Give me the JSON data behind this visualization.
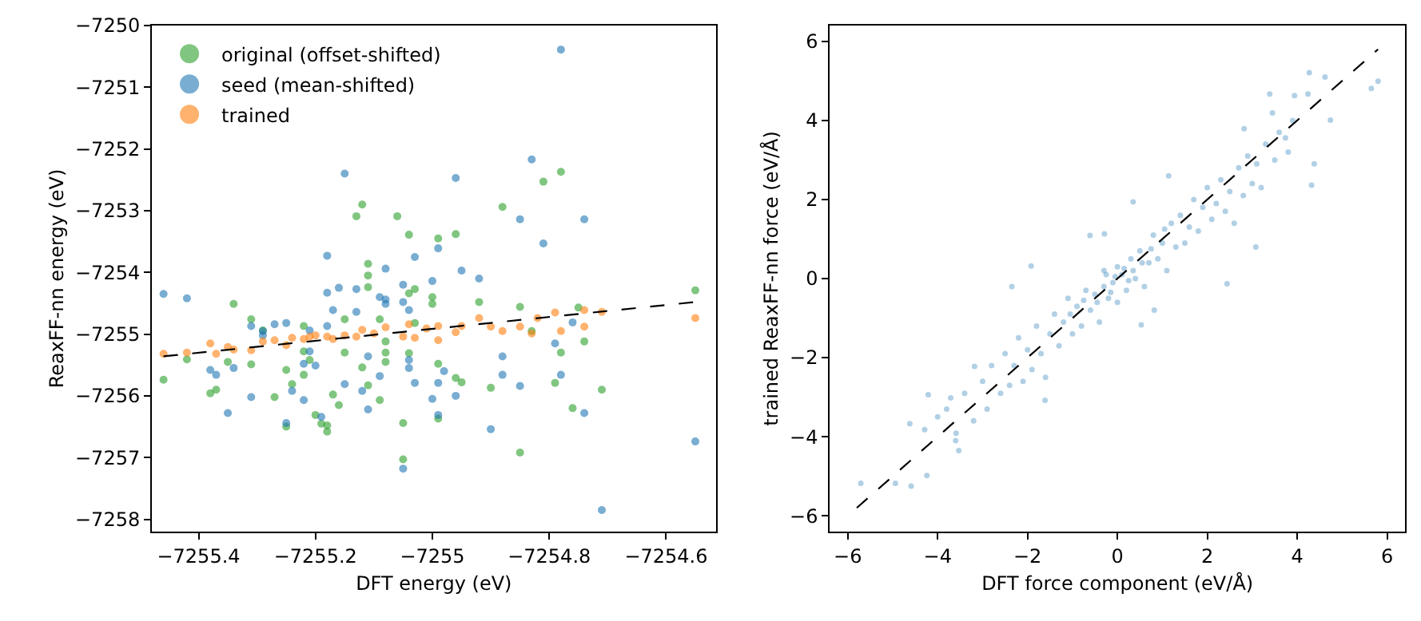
{
  "chart_data": [
    {
      "type": "scatter",
      "xlabel": "DFT energy (eV)",
      "ylabel": "ReaxFF-nn energy (eV)",
      "legend": "top left",
      "marker": "circle",
      "xlim": [
        -7255.48,
        -7254.515
      ],
      "ylim": [
        -7258.2,
        -7250
      ],
      "xticks": [
        -7255.4,
        -7255.2,
        -7255.0,
        -7254.8,
        -7254.6
      ],
      "yticks": [
        -7258,
        -7257,
        -7256,
        -7255,
        -7254,
        -7253,
        -7252,
        -7251,
        -7250
      ],
      "series": [
        {
          "name": "original (offset-shifted)",
          "color": "#2ca02c",
          "x": [
            -7255.46,
            -7255.42,
            -7255.38,
            -7255.37,
            -7255.35,
            -7255.34,
            -7255.31,
            -7255.31,
            -7255.29,
            -7255.27,
            -7255.25,
            -7255.25,
            -7255.24,
            -7255.22,
            -7255.22,
            -7255.22,
            -7255.21,
            -7255.2,
            -7255.19,
            -7255.18,
            -7255.18,
            -7255.17,
            -7255.16,
            -7255.15,
            -7255.15,
            -7255.13,
            -7255.12,
            -7255.12,
            -7255.11,
            -7255.11,
            -7255.11,
            -7255.11,
            -7255.09,
            -7255.09,
            -7255.08,
            -7255.08,
            -7255.08,
            -7255.06,
            -7255.05,
            -7255.05,
            -7255.04,
            -7255.04,
            -7255.04,
            -7255.03,
            -7255.03,
            -7255.0,
            -7255.0,
            -7254.99,
            -7254.99,
            -7254.99,
            -7254.96,
            -7254.96,
            -7254.95,
            -7254.92,
            -7254.9,
            -7254.88,
            -7254.85,
            -7254.85,
            -7254.83,
            -7254.81,
            -7254.79,
            -7254.78,
            -7254.78,
            -7254.76,
            -7254.75,
            -7254.74,
            -7254.71,
            -7254.55
          ],
          "values": [
            -7255.74,
            -7255.41,
            -7255.96,
            -7255.9,
            -7255.45,
            -7254.51,
            -7255.49,
            -7254.76,
            -7254.94,
            -7256.02,
            -7255.58,
            -7256.5,
            -7255.81,
            -7255.28,
            -7254.87,
            -7255.66,
            -7255.42,
            -7256.31,
            -7256.45,
            -7256.58,
            -7256.48,
            -7255.98,
            -7256.15,
            -7254.76,
            -7255.3,
            -7253.09,
            -7252.9,
            -7255.54,
            -7255.83,
            -7254.24,
            -7253.86,
            -7254.05,
            -7254.76,
            -7256.07,
            -7255.12,
            -7255.3,
            -7255.45,
            -7253.09,
            -7256.44,
            -7257.03,
            -7253.39,
            -7254.34,
            -7255.31,
            -7254.82,
            -7254.27,
            -7254.51,
            -7254.4,
            -7256.37,
            -7253.45,
            -7255.48,
            -7255.71,
            -7253.38,
            -7255.78,
            -7254.48,
            -7255.87,
            -7252.94,
            -7254.56,
            -7256.92,
            -7254.95,
            -7252.53,
            -7255.79,
            -7252.37,
            -7255.3,
            -7256.2,
            -7254.57,
            -7255.12,
            -7255.9,
            -7254.29
          ]
        },
        {
          "name": "seed (mean-shifted)",
          "color": "#1f77b4",
          "x": [
            -7255.46,
            -7255.42,
            -7255.38,
            -7255.37,
            -7255.35,
            -7255.34,
            -7255.31,
            -7255.31,
            -7255.29,
            -7255.29,
            -7255.27,
            -7255.25,
            -7255.25,
            -7255.24,
            -7255.22,
            -7255.22,
            -7255.21,
            -7255.21,
            -7255.2,
            -7255.19,
            -7255.18,
            -7255.18,
            -7255.18,
            -7255.17,
            -7255.16,
            -7255.15,
            -7255.15,
            -7255.13,
            -7255.13,
            -7255.12,
            -7255.11,
            -7255.11,
            -7255.09,
            -7255.09,
            -7255.08,
            -7255.08,
            -7255.08,
            -7255.05,
            -7255.05,
            -7255.05,
            -7255.04,
            -7255.04,
            -7255.04,
            -7255.03,
            -7255.03,
            -7255.0,
            -7255.0,
            -7254.99,
            -7254.99,
            -7254.99,
            -7254.98,
            -7254.96,
            -7254.96,
            -7254.95,
            -7254.92,
            -7254.9,
            -7254.88,
            -7254.88,
            -7254.85,
            -7254.85,
            -7254.83,
            -7254.81,
            -7254.79,
            -7254.78,
            -7254.76,
            -7254.74,
            -7254.74,
            -7254.71,
            -7254.78,
            -7254.55
          ],
          "values": [
            -7254.35,
            -7254.42,
            -7255.58,
            -7255.66,
            -7256.28,
            -7255.55,
            -7256.02,
            -7254.87,
            -7254.95,
            -7255.02,
            -7254.84,
            -7254.82,
            -7256.44,
            -7255.92,
            -7255.48,
            -7256.07,
            -7255.28,
            -7254.94,
            -7255.51,
            -7256.34,
            -7253.73,
            -7254.87,
            -7254.33,
            -7254.61,
            -7254.25,
            -7255.81,
            -7252.4,
            -7254.27,
            -7254.64,
            -7255.92,
            -7256.22,
            -7255.36,
            -7255.68,
            -7254.4,
            -7254.44,
            -7253.94,
            -7254.51,
            -7257.18,
            -7254.2,
            -7254.48,
            -7254.61,
            -7255.42,
            -7255.55,
            -7253.75,
            -7255.79,
            -7254.14,
            -7256.05,
            -7255.79,
            -7256.31,
            -7253.61,
            -7255.6,
            -7256.0,
            -7252.47,
            -7253.97,
            -7254.1,
            -7256.54,
            -7255.36,
            -7255.66,
            -7253.14,
            -7255.84,
            -7252.17,
            -7253.53,
            -7255.15,
            -7255.66,
            -7254.81,
            -7253.14,
            -7256.28,
            -7257.85,
            -7250.39,
            -7256.74
          ]
        },
        {
          "name": "trained",
          "color": "#ff7f0e",
          "x": [
            -7255.46,
            -7255.42,
            -7255.38,
            -7255.37,
            -7255.35,
            -7255.34,
            -7255.31,
            -7255.29,
            -7255.27,
            -7255.25,
            -7255.24,
            -7255.22,
            -7255.21,
            -7255.2,
            -7255.18,
            -7255.17,
            -7255.15,
            -7255.13,
            -7255.12,
            -7255.1,
            -7255.08,
            -7255.05,
            -7255.04,
            -7255.03,
            -7255.01,
            -7254.99,
            -7254.99,
            -7254.96,
            -7254.95,
            -7254.92,
            -7254.9,
            -7254.88,
            -7254.85,
            -7254.83,
            -7254.82,
            -7254.79,
            -7254.78,
            -7254.74,
            -7254.74,
            -7254.71,
            -7254.55
          ],
          "values": [
            -7255.32,
            -7255.3,
            -7255.15,
            -7255.32,
            -7255.21,
            -7255.25,
            -7255.26,
            -7255.12,
            -7255.1,
            -7255.18,
            -7255.06,
            -7255.08,
            -7255.04,
            -7255.02,
            -7255.04,
            -7255.08,
            -7255.02,
            -7255.04,
            -7254.93,
            -7254.99,
            -7254.89,
            -7255.04,
            -7254.84,
            -7255.06,
            -7254.91,
            -7255.1,
            -7254.87,
            -7254.97,
            -7254.87,
            -7254.74,
            -7254.88,
            -7254.95,
            -7254.88,
            -7254.99,
            -7254.74,
            -7254.65,
            -7254.95,
            -7254.88,
            -7254.61,
            -7254.64,
            -7254.74
          ]
        },
        {
          "type": "line",
          "color": "#000000",
          "line_style": "dashed",
          "marker": "none",
          "x": [
            -7255.46,
            -7254.55
          ],
          "values": [
            -7255.36,
            -7254.48
          ]
        }
      ]
    },
    {
      "type": "scatter",
      "xlabel": "DFT force component (eV/Å)",
      "ylabel": "trained ReaxFF-nn force (eV/Å)",
      "legend": false,
      "marker": "circle",
      "xlim": [
        -6.4,
        6.4
      ],
      "ylim": [
        -6.4,
        6.4
      ],
      "xticks": [
        -6,
        -4,
        -2,
        0,
        2,
        4,
        6
      ],
      "yticks": [
        -6,
        -4,
        -2,
        0,
        2,
        4,
        6
      ],
      "series": [
        {
          "color": "#1f77b4",
          "x": [
            -5.71,
            -4.94,
            -4.59,
            -4.62,
            -4.24,
            -4.21,
            -4.29,
            -3.53,
            -3.59,
            -3.71,
            -3.18,
            -1.92,
            -2.35,
            -1.61,
            2.44,
            3.08,
            4.32,
            4.38,
            4.74,
            4.27,
            4.62,
            5.65,
            5.8,
            3.39,
            3.45,
            2.82,
            1.14,
            0.35,
            -0.61,
            -0.29,
            0.53,
            0.82,
            3.74,
            3.94,
            4.24,
            -3.4,
            -3.2,
            -3.0,
            -2.9,
            -2.8,
            -2.6,
            -2.5,
            -2.4,
            -2.3,
            -2.2,
            -2.1,
            -2.0,
            -1.9,
            -1.8,
            -1.7,
            -1.6,
            -1.5,
            -1.4,
            -1.3,
            -1.2,
            -1.1,
            -1.0,
            -0.9,
            -0.8,
            -0.7,
            -0.6,
            -0.5,
            -0.4,
            -0.3,
            -0.2,
            -0.1,
            0,
            0,
            0.1,
            0.2,
            0.3,
            0.4,
            0.5,
            0.6,
            0.7,
            0.8,
            0.9,
            1.0,
            1.1,
            1.2,
            1.3,
            1.4,
            1.5,
            1.6,
            1.7,
            1.8,
            1.9,
            2.0,
            2.1,
            2.2,
            2.3,
            2.4,
            2.5,
            2.6,
            2.7,
            2.8,
            2.9,
            3.0,
            3.1,
            3.2,
            3.3,
            3.5,
            3.6,
            3.8,
            3.9,
            -3.8,
            -3.6,
            -4.0,
            -0.3,
            0.15,
            -0.05,
            0.35,
            -0.15,
            0.55,
            -0.45,
            0.75,
            -0.75,
            1.05,
            -1.05,
            0.25,
            -0.25
          ],
          "values": [
            -5.18,
            -5.18,
            -5.25,
            -3.67,
            -4.98,
            -2.94,
            -3.82,
            -4.35,
            -3.91,
            -3.02,
            -2.22,
            0.32,
            -0.2,
            -3.08,
            -0.13,
            0.8,
            2.36,
            2.9,
            4.01,
            5.21,
            5.1,
            4.81,
            4.99,
            4.67,
            4.19,
            3.79,
            2.6,
            1.94,
            1.09,
            1.13,
            -1.17,
            -0.8,
            3.56,
            4.63,
            4.67,
            -2.9,
            -3.6,
            -2.6,
            -3.3,
            -2.2,
            -2.9,
            -1.9,
            -2.7,
            -2.2,
            -1.5,
            -2.6,
            -1.8,
            -2.3,
            -1.2,
            -1.9,
            -2.5,
            -1.4,
            -0.9,
            -1.7,
            -1.1,
            -0.5,
            -1.4,
            -0.7,
            -1.2,
            -0.3,
            -0.8,
            -0.4,
            -1.1,
            0.2,
            -0.5,
            -0.1,
            0.3,
            -0.6,
            0.1,
            -0.3,
            0.5,
            0.0,
            0.7,
            -0.2,
            0.4,
            1.1,
            0.5,
            0.9,
            0.2,
            1.4,
            0.8,
            1.6,
            0.9,
            1.3,
            2.0,
            1.2,
            1.8,
            2.3,
            1.5,
            1.9,
            2.5,
            1.7,
            2.2,
            1.4,
            2.8,
            2.1,
            3.1,
            2.4,
            2.9,
            2.3,
            3.4,
            3.0,
            3.7,
            3.2,
            4.0,
            -3.3,
            -4.1,
            -3.5,
            -0.2,
            0.25,
            0.05,
            0.2,
            -0.35,
            0.4,
            -0.6,
            0.75,
            -0.55,
            1.25,
            -0.9,
            -0.05,
            0.1
          ]
        },
        {
          "type": "line",
          "color": "#000000",
          "line_style": "dashed",
          "marker": "none",
          "x": [
            -5.8,
            5.8
          ],
          "values": [
            -5.8,
            5.8
          ]
        }
      ]
    }
  ]
}
